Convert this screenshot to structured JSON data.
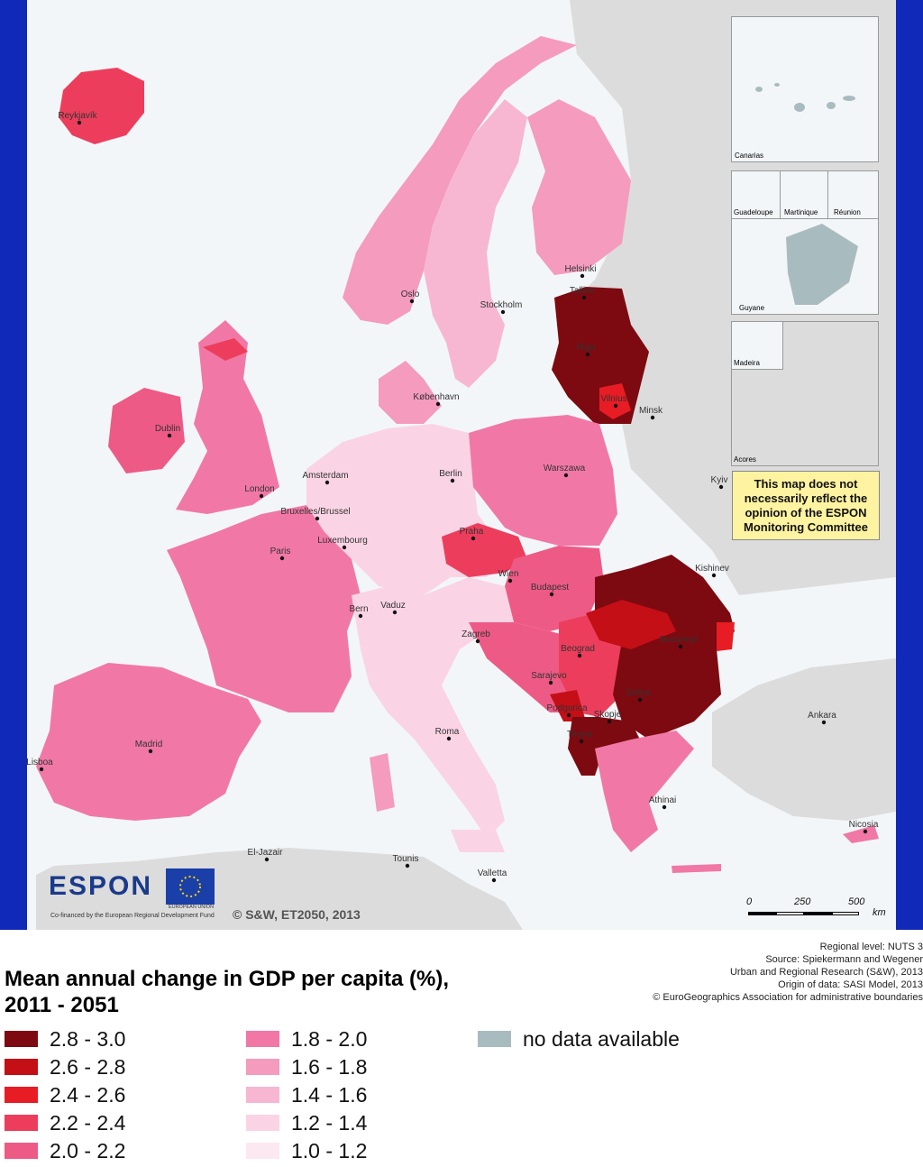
{
  "colors": {
    "sea": "#f3f6f8",
    "non_europe": "#dcdcdc",
    "no_data": "#a8bcc0",
    "border_bar": "#1029b8",
    "classes": [
      "#7d0a10",
      "#c40f16",
      "#e81c24",
      "#ec3e5c",
      "#ee5a86",
      "#f178a6",
      "#f49bbe",
      "#f7b7d2",
      "#fad4e4",
      "#fce8f0"
    ]
  },
  "map": {
    "cities": [
      "Reykjavík",
      "Oslo",
      "Helsinki",
      "Tallinn",
      "Stockholm",
      "Riga",
      "København",
      "Vilnius",
      "Minsk",
      "Dublin",
      "Amsterdam",
      "Berlin",
      "Warszawa",
      "London",
      "Kyiv",
      "Bruxelles/Brussel",
      "Luxembourg",
      "Praha",
      "Paris",
      "Wien",
      "Kishinev",
      "Budapest",
      "Bern",
      "Vaduz",
      "Zagreb",
      "București",
      "Beograd",
      "Sarajevo",
      "Sofiya",
      "Podgorica",
      "Skopje",
      "Tirana",
      "Ankara",
      "Roma",
      "Madrid",
      "Lisboa",
      "Athinai",
      "Nicosia",
      "El-Jazair",
      "Tounis",
      "Valletta"
    ],
    "insets": [
      "Canarias",
      "Guadeloupe",
      "Martinique",
      "Réunion",
      "Guyane",
      "Madeira",
      "Acores"
    ],
    "disclaimer": "This map does not necessarily reflect the opinion of the ESPON Monitoring Committee",
    "logo_text": "ESPON",
    "eu_label": "EUROPEAN UNION",
    "cofinanced": "Co-financed by the European Regional Development Fund",
    "copyright": "© S&W, ET2050, 2013",
    "scale_labels": [
      "0",
      "250",
      "500"
    ],
    "scale_unit": "km"
  },
  "source": {
    "lines": [
      "Regional level: NUTS 3",
      "Source: Spiekermann and Wegener",
      "Urban and Regional Research (S&W), 2013",
      "Origin of data: SASI Model, 2013",
      "© EuroGeographics Association for administrative boundaries"
    ]
  },
  "legend": {
    "title_line1": "Mean annual change in GDP per capita (%),",
    "title_line2": "2011 - 2051",
    "classes": [
      "2.8 - 3.0",
      "2.6 - 2.8",
      "2.4 - 2.6",
      "2.2 - 2.4",
      "2.0 - 2.2",
      "1.8 - 2.0",
      "1.6 - 1.8",
      "1.4 - 1.6",
      "1.2 - 1.4",
      "1.0 - 1.2"
    ],
    "no_data": "no data available"
  }
}
